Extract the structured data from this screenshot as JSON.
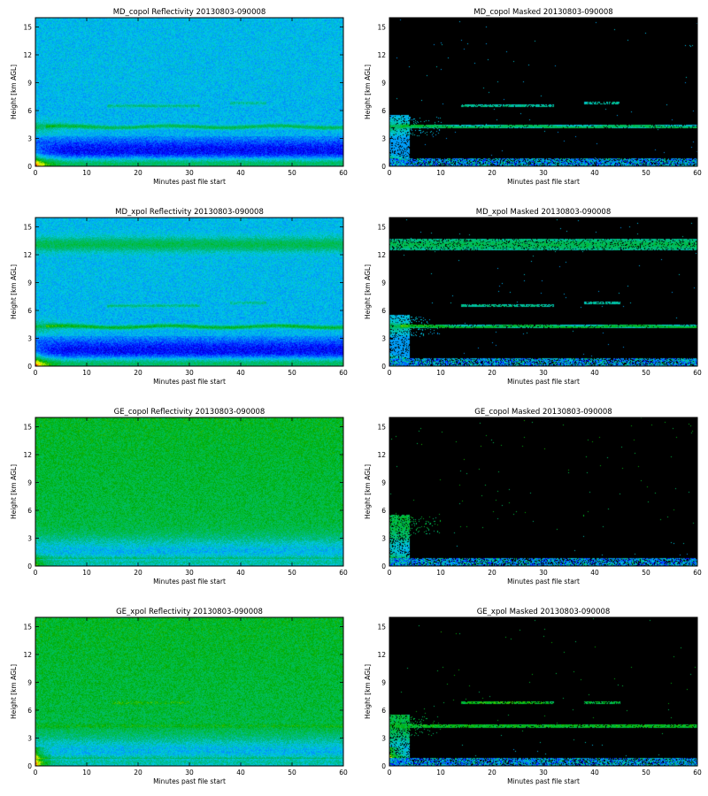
{
  "figure": {
    "panels": [
      {
        "id": "mdcopolref",
        "title": "MD_copol Reflectivity 20130803-090008",
        "type": "reflectivity",
        "scheme": "md"
      },
      {
        "id": "mdcopolmask",
        "title": "MD_copol Masked 20130803-090008",
        "type": "masked",
        "scheme": "md"
      },
      {
        "id": "mdxpolref",
        "title": "MD_xpol Reflectivity 20130803-090008",
        "type": "reflectivity",
        "scheme": "mdx"
      },
      {
        "id": "mdxpolmask",
        "title": "MD_xpol Masked 20130803-090008",
        "type": "masked",
        "scheme": "mdx"
      },
      {
        "id": "gecopolref",
        "title": "GE_copol Reflectivity 20130803-090008",
        "type": "reflectivity",
        "scheme": "ge"
      },
      {
        "id": "gecopolmask",
        "title": "GE_copol Masked 20130803-090008",
        "type": "masked",
        "scheme": "ge"
      },
      {
        "id": "gexpolref",
        "title": "GE_xpol Reflectivity 20130803-090008",
        "type": "reflectivity",
        "scheme": "gex"
      },
      {
        "id": "gexpolmask",
        "title": "GE_xpol Masked 20130803-090008",
        "type": "masked",
        "scheme": "gex"
      }
    ],
    "xlabel": "Minutes past file start",
    "ylabel": "Height [km AGL]",
    "xticks": [
      "0",
      "10",
      "20",
      "30",
      "40",
      "50",
      "60"
    ],
    "yticks": [
      "0",
      "3",
      "6",
      "9",
      "12",
      "15"
    ]
  },
  "chart_data": [
    {
      "type": "heatmap",
      "title": "MD_copol Reflectivity 20130803-090008",
      "xlabel": "Minutes past file start",
      "ylabel": "Height [km AGL]",
      "xlim": [
        0,
        60
      ],
      "ylim": [
        0,
        16
      ],
      "features": [
        {
          "layer": "near-surface echo",
          "height_km": [
            0,
            1.5
          ]
        },
        {
          "layer": "thin layer",
          "height_km": 4.3
        },
        {
          "layer": "elevated layer",
          "height_km": 6.5,
          "minutes": [
            15,
            45
          ]
        }
      ]
    },
    {
      "type": "heatmap",
      "title": "MD_copol Masked 20130803-090008",
      "xlabel": "Minutes past file start",
      "ylabel": "Height [km AGL]",
      "xlim": [
        0,
        60
      ],
      "ylim": [
        0,
        16
      ],
      "background": "#000000"
    },
    {
      "type": "heatmap",
      "title": "MD_xpol Reflectivity 20130803-090008",
      "xlabel": "Minutes past file start",
      "ylabel": "Height [km AGL]",
      "xlim": [
        0,
        60
      ],
      "ylim": [
        0,
        16
      ],
      "features": [
        {
          "layer": "near-surface echo",
          "height_km": [
            0,
            1.5
          ]
        },
        {
          "layer": "thin layer",
          "height_km": 4.3
        },
        {
          "layer": "upper layer",
          "height_km": 13
        }
      ]
    },
    {
      "type": "heatmap",
      "title": "MD_xpol Masked 20130803-090008",
      "xlabel": "Minutes past file start",
      "ylabel": "Height [km AGL]",
      "xlim": [
        0,
        60
      ],
      "ylim": [
        0,
        16
      ],
      "background": "#000000"
    },
    {
      "type": "heatmap",
      "title": "GE_copol Reflectivity 20130803-090008",
      "xlabel": "Minutes past file start",
      "ylabel": "Height [km AGL]",
      "xlim": [
        0,
        60
      ],
      "ylim": [
        0,
        16
      ]
    },
    {
      "type": "heatmap",
      "title": "GE_copol Masked 20130803-090008",
      "xlabel": "Minutes past file start",
      "ylabel": "Height [km AGL]",
      "xlim": [
        0,
        60
      ],
      "ylim": [
        0,
        16
      ],
      "background": "#000000"
    },
    {
      "type": "heatmap",
      "title": "GE_xpol Reflectivity 20130803-090008",
      "xlabel": "Minutes past file start",
      "ylabel": "Height [km AGL]",
      "xlim": [
        0,
        60
      ],
      "ylim": [
        0,
        16
      ],
      "features": [
        {
          "layer": "thin layer",
          "height_km": 4.3
        },
        {
          "layer": "elevated layer",
          "height_km": 6.8,
          "minutes": [
            15,
            45
          ]
        }
      ]
    },
    {
      "type": "heatmap",
      "title": "GE_xpol Masked 20130803-090008",
      "xlabel": "Minutes past file start",
      "ylabel": "Height [km AGL]",
      "xlim": [
        0,
        60
      ],
      "ylim": [
        0,
        16
      ],
      "background": "#000000"
    }
  ]
}
